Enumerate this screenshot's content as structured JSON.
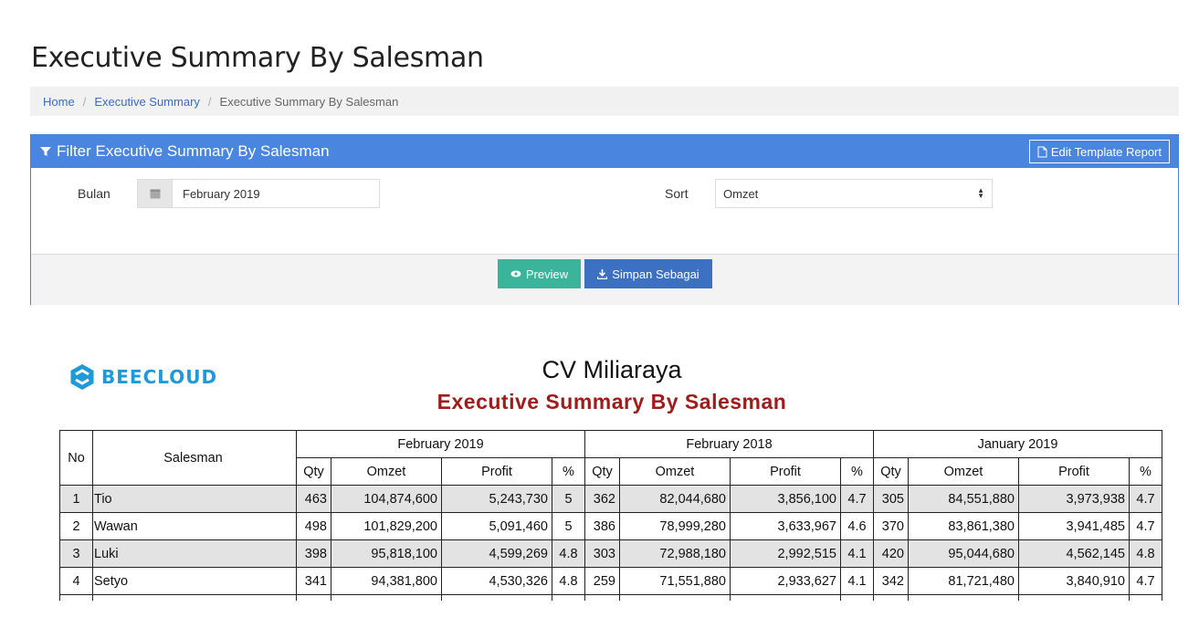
{
  "page": {
    "title": "Executive Summary By Salesman",
    "breadcrumb": [
      "Home",
      "Executive Summary",
      "Executive Summary By Salesman"
    ]
  },
  "filter": {
    "title": "Filter Executive Summary By Salesman",
    "edit_template_label": "Edit Template Report",
    "month_label": "Bulan",
    "month_value": "February 2019",
    "sort_label": "Sort",
    "sort_value": "Omzet",
    "preview_label": "Preview",
    "save_label": "Simpan Sebagai"
  },
  "report": {
    "brand": "BEECLOUD",
    "brand_color": "#1e9ad8",
    "company": "CV Miliaraya",
    "title": "Executive Summary By Salesman",
    "title_color": "#a01c1c",
    "headers": {
      "no": "No",
      "salesman": "Salesman",
      "periods": [
        "February 2019",
        "February 2018",
        "January 2019"
      ],
      "sub": [
        "Qty",
        "Omzet",
        "Profit",
        "%"
      ]
    },
    "rows": [
      {
        "no": "1",
        "salesman": "Tio",
        "cells": [
          "463",
          "104,874,600",
          "5,243,730",
          "5",
          "362",
          "82,044,680",
          "3,856,100",
          "4.7",
          "305",
          "84,551,880",
          "3,973,938",
          "4.7"
        ]
      },
      {
        "no": "2",
        "salesman": "Wawan",
        "cells": [
          "498",
          "101,829,200",
          "5,091,460",
          "5",
          "386",
          "78,999,280",
          "3,633,967",
          "4.6",
          "370",
          "83,861,380",
          "3,941,485",
          "4.7"
        ]
      },
      {
        "no": "3",
        "salesman": "Luki",
        "cells": [
          "398",
          "95,818,100",
          "4,599,269",
          "4.8",
          "303",
          "72,988,180",
          "2,992,515",
          "4.1",
          "420",
          "95,044,680",
          "4,562,145",
          "4.8"
        ]
      },
      {
        "no": "4",
        "salesman": "Setyo",
        "cells": [
          "341",
          "94,381,800",
          "4,530,326",
          "4.8",
          "259",
          "71,551,880",
          "2,933,627",
          "4.1",
          "342",
          "81,721,480",
          "3,840,910",
          "4.7"
        ]
      }
    ]
  }
}
